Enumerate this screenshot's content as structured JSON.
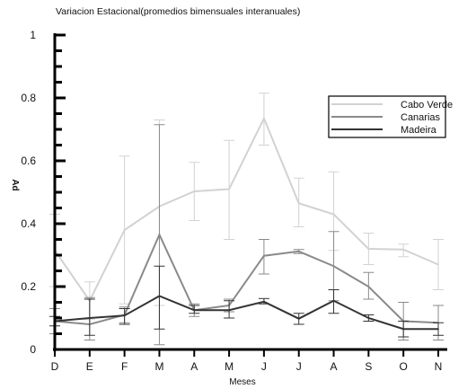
{
  "chart_data": {
    "type": "line",
    "title": "Variacion Estacional(promedios bimensuales interanuales)",
    "xlabel": "Meses",
    "ylabel": "Ad",
    "categories": [
      "D",
      "E",
      "F",
      "M",
      "A",
      "M",
      "J",
      "J",
      "A",
      "S",
      "O",
      "N"
    ],
    "ylim": [
      0,
      1
    ],
    "yticks": [
      0,
      0.2,
      0.4,
      0.6,
      0.8,
      1
    ],
    "ytick_labels": [
      "0",
      "0.2",
      "0.4",
      "0.6",
      "0.8",
      "1"
    ],
    "grid": false,
    "legend_position": "right",
    "error_bars": true,
    "series": [
      {
        "name": "Cabo Verde",
        "color": "#d2d2d2",
        "values": [
          0.315,
          0.155,
          0.38,
          0.455,
          0.503,
          0.51,
          0.735,
          0.465,
          0.43,
          0.32,
          0.318,
          0.27
        ],
        "err_low": [
          0.2,
          0.095,
          0.145,
          0.14,
          0.41,
          0.35,
          0.65,
          0.39,
          0.315,
          0.27,
          0.295,
          0.19
        ],
        "err_high": [
          0.43,
          0.215,
          0.615,
          0.73,
          0.595,
          0.665,
          0.815,
          0.545,
          0.565,
          0.37,
          0.335,
          0.35
        ]
      },
      {
        "name": "Canarias",
        "color": "#8a8a8a",
        "values": [
          0.09,
          0.08,
          0.11,
          0.365,
          0.125,
          0.14,
          0.298,
          0.312,
          0.265,
          0.2,
          0.09,
          0.085
        ],
        "err_low": [
          0.05,
          0.03,
          0.085,
          0.015,
          0.105,
          0.12,
          0.24,
          0.305,
          0.155,
          0.16,
          0.03,
          0.03
        ],
        "err_high": [
          0.13,
          0.165,
          0.135,
          0.715,
          0.145,
          0.16,
          0.35,
          0.318,
          0.375,
          0.245,
          0.15,
          0.14
        ]
      },
      {
        "name": "Madeira",
        "color": "#333333",
        "values": [
          0.09,
          0.1,
          0.108,
          0.17,
          0.125,
          0.125,
          0.152,
          0.098,
          0.155,
          0.1,
          0.065,
          0.065
        ],
        "err_low": [
          0.075,
          0.045,
          0.08,
          0.065,
          0.115,
          0.1,
          0.145,
          0.08,
          0.115,
          0.09,
          0.04,
          0.045
        ],
        "err_high": [
          0.105,
          0.16,
          0.13,
          0.265,
          0.14,
          0.155,
          0.162,
          0.115,
          0.19,
          0.11,
          0.09,
          0.085
        ]
      }
    ]
  }
}
